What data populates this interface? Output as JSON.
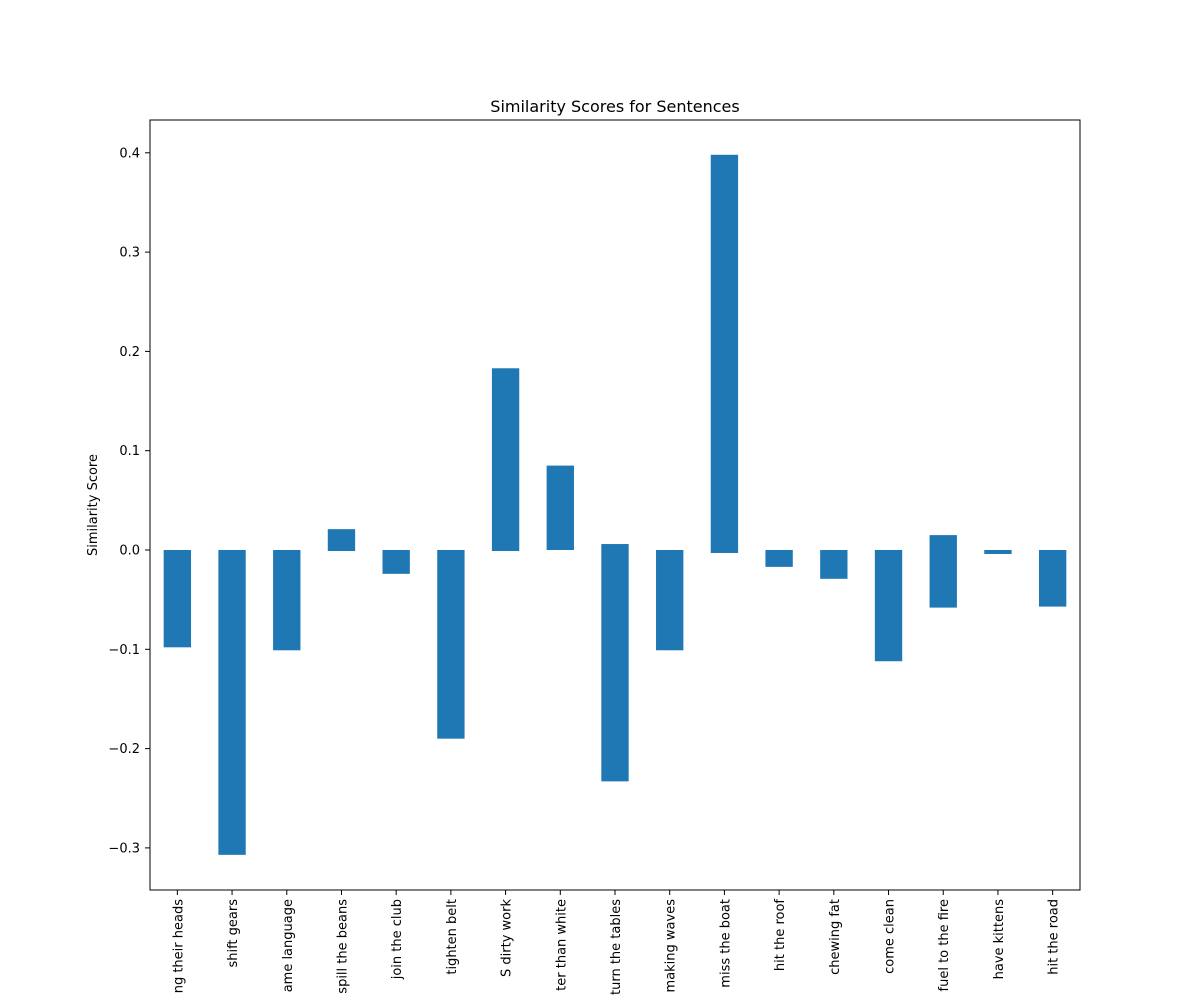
{
  "chart_data": {
    "type": "bar",
    "title": "Similarity Scores for Sentences",
    "xlabel": "",
    "ylabel": "Similarity Score",
    "ylim": [
      -0.34,
      0.43
    ],
    "yticks": [
      -0.3,
      -0.2,
      -0.1,
      0.0,
      0.1,
      0.2,
      0.3,
      0.4
    ],
    "ytick_labels": [
      "−0.3",
      "−0.2",
      "−0.1",
      "0.0",
      "0.1",
      "0.2",
      "0.3",
      "0.4"
    ],
    "grid": false,
    "legend": "none",
    "bar_color": "#1f77b4",
    "categories": [
      "ng their heads",
      "shift gears",
      "ame language",
      "spill the beans",
      "join the club",
      "tighten belt",
      "S dirty work",
      "ter than white",
      "turn the tables",
      "making waves",
      "miss the boat",
      "hit the roof",
      "chewing fat",
      "come clean",
      "fuel to the fire",
      "have kittens",
      "hit the road"
    ],
    "ranges": [
      [
        -0.098,
        0.0
      ],
      [
        -0.307,
        0.0
      ],
      [
        -0.101,
        0.0
      ],
      [
        -0.001,
        0.021
      ],
      [
        -0.024,
        0.0
      ],
      [
        -0.19,
        0.0
      ],
      [
        -0.001,
        0.183
      ],
      [
        0.0,
        0.085
      ],
      [
        -0.233,
        0.006
      ],
      [
        -0.101,
        0.0
      ],
      [
        -0.003,
        0.398
      ],
      [
        -0.017,
        0.0
      ],
      [
        -0.029,
        0.0
      ],
      [
        -0.112,
        0.0
      ],
      [
        -0.058,
        0.015
      ],
      [
        -0.004,
        0.0
      ],
      [
        -0.057,
        0.0
      ]
    ]
  }
}
